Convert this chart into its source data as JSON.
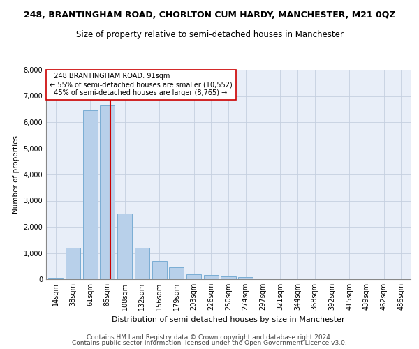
{
  "title": "248, BRANTINGHAM ROAD, CHORLTON CUM HARDY, MANCHESTER, M21 0QZ",
  "subtitle": "Size of property relative to semi-detached houses in Manchester",
  "xlabel": "Distribution of semi-detached houses by size in Manchester",
  "ylabel": "Number of properties",
  "footer_line1": "Contains HM Land Registry data © Crown copyright and database right 2024.",
  "footer_line2": "Contains public sector information licensed under the Open Government Licence v3.0.",
  "property_label": "248 BRANTINGHAM ROAD: 91sqm",
  "pct_smaller": 55,
  "pct_smaller_count": "10,552",
  "pct_larger": 45,
  "pct_larger_count": "8,765",
  "categories": [
    "14sqm",
    "38sqm",
    "61sqm",
    "85sqm",
    "108sqm",
    "132sqm",
    "156sqm",
    "179sqm",
    "203sqm",
    "226sqm",
    "250sqm",
    "274sqm",
    "297sqm",
    "321sqm",
    "344sqm",
    "368sqm",
    "392sqm",
    "415sqm",
    "439sqm",
    "462sqm",
    "486sqm"
  ],
  "values": [
    50,
    1200,
    6450,
    6650,
    2500,
    1200,
    700,
    450,
    200,
    150,
    110,
    90,
    10,
    5,
    2,
    2,
    1,
    1,
    1,
    1,
    0
  ],
  "bar_color": "#b8d0ea",
  "bar_edge_color": "#7aadd4",
  "vline_color": "#cc0000",
  "annotation_box_color": "#cc0000",
  "ylim": [
    0,
    8000
  ],
  "yticks": [
    0,
    1000,
    2000,
    3000,
    4000,
    5000,
    6000,
    7000,
    8000
  ],
  "grid_color": "#c5cfe0",
  "background_color": "#e8eef8",
  "title_fontsize": 9,
  "subtitle_fontsize": 8.5,
  "ylabel_fontsize": 7.5,
  "xlabel_fontsize": 8,
  "tick_fontsize": 7,
  "annotation_fontsize": 7,
  "footer_fontsize": 6.5,
  "vline_position": 3.18
}
